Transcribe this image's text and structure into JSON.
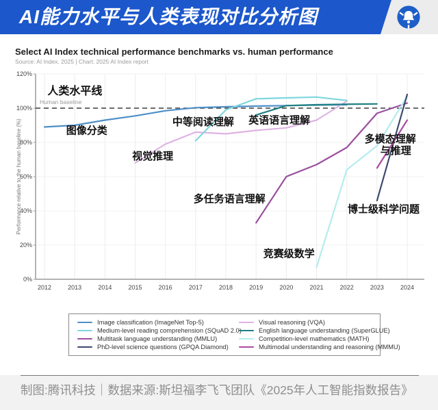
{
  "header": {
    "title": "AI能力水平与人类表现对比分析图",
    "brand_color": "#1c57cb",
    "logo_icon": "tencent-news-bell"
  },
  "chart": {
    "title": "Select AI Index technical performance benchmarks vs. human performance",
    "source": "Source: AI Index, 2025 | Chart: 2025 AI Index report"
  },
  "chart_data": {
    "type": "line",
    "title": "Select AI Index technical performance benchmarks vs. human performance",
    "xlabel": "",
    "ylabel": "Performance relative to the human baseline (%)",
    "x_ticks": [
      2012,
      2013,
      2014,
      2015,
      2016,
      2017,
      2018,
      2019,
      2020,
      2021,
      2022,
      2023,
      2024
    ],
    "y_ticks": [
      "0%",
      "20%",
      "40%",
      "60%",
      "80%",
      "100%",
      "120%"
    ],
    "ylim": [
      0,
      120
    ],
    "grid": true,
    "baseline": {
      "value": 100,
      "label": "Human baseline",
      "style": "dashed",
      "color": "#3a3a3a"
    },
    "series": [
      {
        "name": "Image classification (ImageNet Top-5)",
        "color": "#4e8fc7",
        "points": [
          [
            2012,
            89
          ],
          [
            2013,
            90
          ],
          [
            2014,
            93
          ],
          [
            2015,
            95.5
          ],
          [
            2016,
            98.5
          ],
          [
            2017,
            100.3
          ],
          [
            2018,
            100.8
          ],
          [
            2019,
            101.2
          ],
          [
            2020,
            101.5
          ],
          [
            2021,
            101.8
          ],
          [
            2022,
            102
          ]
        ]
      },
      {
        "name": "Visual reasoning (VQA)",
        "color": "#ddb3e3",
        "points": [
          [
            2015,
            68
          ],
          [
            2016,
            79
          ],
          [
            2017,
            86
          ],
          [
            2018,
            85
          ],
          [
            2019,
            87
          ],
          [
            2020,
            88.5
          ],
          [
            2021,
            93
          ],
          [
            2022,
            104
          ]
        ]
      },
      {
        "name": "Medium-level reading comprehension (SQuAD 2.0)",
        "color": "#7fd6de",
        "points": [
          [
            2017,
            81
          ],
          [
            2018,
            99
          ],
          [
            2019,
            105.5
          ],
          [
            2020,
            106
          ],
          [
            2021,
            106.5
          ],
          [
            2022,
            104.5
          ]
        ]
      },
      {
        "name": "English language understanding (SuperGLUE)",
        "color": "#1f7f82",
        "points": [
          [
            2019,
            96
          ],
          [
            2020,
            101.5
          ],
          [
            2021,
            102
          ],
          [
            2022,
            102.3
          ],
          [
            2023,
            102.5
          ]
        ]
      },
      {
        "name": "Multitask language understanding (MMLU)",
        "color": "#9b4f9e",
        "points": [
          [
            2019,
            33
          ],
          [
            2020,
            60
          ],
          [
            2021,
            67
          ],
          [
            2022,
            77
          ],
          [
            2023,
            97
          ],
          [
            2024,
            103
          ]
        ]
      },
      {
        "name": "Competition-level mathematics (MATH)",
        "color": "#b5ecee",
        "points": [
          [
            2021,
            7
          ],
          [
            2022,
            64
          ],
          [
            2023,
            78
          ],
          [
            2024,
            107
          ]
        ]
      },
      {
        "name": "PhD-level science questions (GPQA Diamond)",
        "color": "#3b4a6e",
        "points": [
          [
            2023,
            46
          ],
          [
            2024,
            108
          ]
        ]
      },
      {
        "name": "Multimodal understanding and reasoning (MMMU)",
        "color": "#aa4ba0",
        "points": [
          [
            2023,
            65
          ],
          [
            2024,
            93
          ]
        ]
      }
    ],
    "annotations": [
      {
        "text": "人类水平线",
        "year": 2012.1,
        "pct": 108,
        "size": 16
      },
      {
        "text": "图像分类",
        "year": 2012.72,
        "pct": 85,
        "size": 15
      },
      {
        "text": "视觉推理",
        "year": 2014.9,
        "pct": 70,
        "size": 15
      },
      {
        "text": "中等阅读理解",
        "year": 2016.23,
        "pct": 90,
        "size": 15
      },
      {
        "text": "英语语言理解",
        "year": 2018.75,
        "pct": 91,
        "size": 15
      },
      {
        "text": "多任务语言理解",
        "year": 2016.93,
        "pct": 45,
        "size": 15
      },
      {
        "text": "竞赛级数学",
        "year": 2019.24,
        "pct": 13,
        "size": 15
      },
      {
        "text": "多模态理解\n与推理",
        "year": 2022.59,
        "pct": 80,
        "size": 15
      },
      {
        "text": "博士级科学问题",
        "year": 2022.03,
        "pct": 39,
        "size": 15
      }
    ],
    "legend_position": "bottom",
    "legend": [
      {
        "label": "Image classification (ImageNet Top-5)",
        "color": "#4e8fc7"
      },
      {
        "label": "Visual reasoning (VQA)",
        "color": "#ddb3e3"
      },
      {
        "label": "Medium-level reading comprehension (SQuAD 2.0)",
        "color": "#7fd6de"
      },
      {
        "label": "English language understanding (SuperGLUE)",
        "color": "#1f7f82"
      },
      {
        "label": "Multitask language understanding (MMLU)",
        "color": "#9b4f9e"
      },
      {
        "label": "Competition-level mathematics (MATH)",
        "color": "#b5ecee"
      },
      {
        "label": "PhD-level science questions (GPQA Diamond)",
        "color": "#3b4a6e"
      },
      {
        "label": "Multimodal understanding and reasoning (MMMU)",
        "color": "#aa4ba0"
      }
    ]
  },
  "footer": {
    "caption": "制图:腾讯科技｜数据来源:斯坦福李飞飞团队《2025年人工智能指数报告》"
  }
}
